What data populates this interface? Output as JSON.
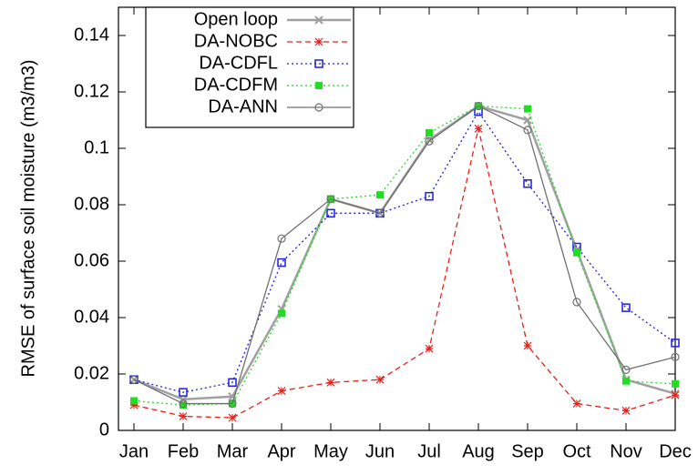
{
  "chart_data": {
    "type": "line",
    "y_label": "RMSE of surface soil moisture (m3/m3)",
    "categories": [
      "Jan",
      "Feb",
      "Mar",
      "Apr",
      "May",
      "Jun",
      "Jul",
      "Aug",
      "Sep",
      "Oct",
      "Nov",
      "Dec"
    ],
    "ylim": [
      0,
      0.15
    ],
    "yticks": [
      0,
      0.02,
      0.04,
      0.06,
      0.08,
      0.1,
      0.12,
      0.14
    ],
    "legend": "top-left",
    "series": [
      {
        "name": "Open loop",
        "color": "#a0a0a0",
        "marker": "x",
        "dash": "solid",
        "values": [
          0.018,
          0.011,
          0.012,
          0.043,
          0.082,
          0.077,
          0.103,
          0.115,
          0.11,
          0.064,
          0.018,
          0.013
        ]
      },
      {
        "name": "DA-NOBC",
        "color": "#e8201a",
        "marker": "asterisk",
        "dash": "dashed",
        "values": [
          0.009,
          0.005,
          0.0045,
          0.014,
          0.017,
          0.018,
          0.029,
          0.107,
          0.03,
          0.0095,
          0.007,
          0.0125
        ]
      },
      {
        "name": "DA-CDFL",
        "color": "#1f1fdc",
        "marker": "open-square",
        "dash": "dotted",
        "values": [
          0.018,
          0.0135,
          0.017,
          0.0595,
          0.077,
          0.077,
          0.083,
          0.113,
          0.0875,
          0.065,
          0.0435,
          0.031
        ]
      },
      {
        "name": "DA-CDFM",
        "color": "#22dd22",
        "marker": "filled-square",
        "dash": "dotted",
        "values": [
          0.0105,
          0.009,
          0.0095,
          0.0415,
          0.082,
          0.0835,
          0.1055,
          0.115,
          0.114,
          0.063,
          0.0175,
          0.0165
        ]
      },
      {
        "name": "DA-ANN",
        "color": "#707070",
        "marker": "open-circle",
        "dash": "solid",
        "values": [
          0.018,
          0.0095,
          0.0095,
          0.068,
          0.082,
          0.077,
          0.1025,
          0.115,
          0.1065,
          0.0455,
          0.0215,
          0.026
        ]
      }
    ]
  }
}
